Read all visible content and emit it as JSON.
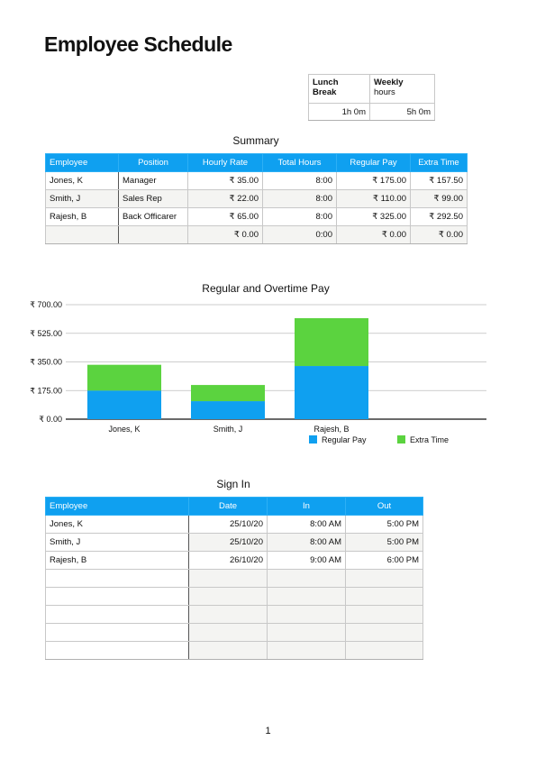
{
  "title": "Employee Schedule",
  "lunch_info": {
    "headers": [
      "Lunch Break",
      "Weekly hours"
    ],
    "header_lines": [
      [
        "Lunch",
        "Break"
      ],
      [
        "Weekly",
        "hours"
      ]
    ],
    "values": [
      "1h 0m",
      "5h 0m"
    ]
  },
  "summary": {
    "title": "Summary",
    "headers": [
      "Employee",
      "Position",
      "Hourly Rate",
      "Total Hours",
      "Regular Pay",
      "Extra Time"
    ],
    "rows": [
      [
        "Jones, K",
        "Manager",
        "₹ 35.00",
        "8:00",
        "₹ 175.00",
        "₹ 157.50"
      ],
      [
        "Smith, J",
        "Sales Rep",
        "₹ 22.00",
        "8:00",
        "₹ 110.00",
        "₹ 99.00"
      ],
      [
        "Rajesh, B",
        "Back Officarer",
        "₹ 65.00",
        "8:00",
        "₹ 325.00",
        "₹ 292.50"
      ],
      [
        "",
        "",
        "₹ 0.00",
        "0:00",
        "₹ 0.00",
        "₹ 0.00"
      ]
    ]
  },
  "chart_data": {
    "type": "bar",
    "stacked": true,
    "title": "Regular and Overtime Pay",
    "categories": [
      "Jones, K",
      "Smith, J",
      "Rajesh, B"
    ],
    "series": [
      {
        "name": "Regular Pay",
        "values": [
          175,
          110,
          325
        ],
        "color": "#0fa0f0"
      },
      {
        "name": "Extra Time",
        "values": [
          157.5,
          99,
          292.5
        ],
        "color": "#5bd33f"
      }
    ],
    "ylim": [
      0,
      700
    ],
    "yticks": [
      0,
      175,
      350,
      525,
      700
    ],
    "ytick_labels": [
      "₹ 0.00",
      "₹ 175.00",
      "₹ 350.00",
      "₹ 525.00",
      "₹ 700.00"
    ],
    "grid": true,
    "legend": "bottom"
  },
  "signin": {
    "title": "Sign In",
    "headers": [
      "Employee",
      "Date",
      "In",
      "Out"
    ],
    "rows": [
      [
        "Jones, K",
        "25/10/20",
        "8:00 AM",
        "5:00 PM"
      ],
      [
        "Smith, J",
        "25/10/20",
        "8:00 AM",
        "5:00 PM"
      ],
      [
        "Rajesh, B",
        "26/10/20",
        "9:00 AM",
        "6:00 PM"
      ],
      [
        "",
        "",
        "",
        ""
      ],
      [
        "",
        "",
        "",
        ""
      ],
      [
        "",
        "",
        "",
        ""
      ],
      [
        "",
        "",
        "",
        ""
      ],
      [
        "",
        "",
        "",
        ""
      ]
    ]
  },
  "page_number": "1"
}
